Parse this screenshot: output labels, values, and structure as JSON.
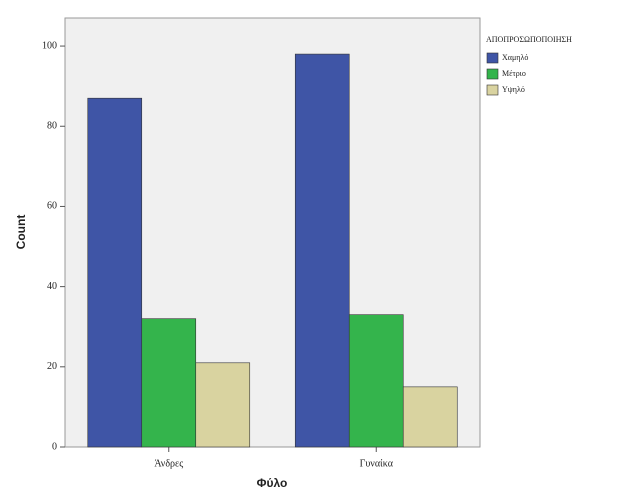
{
  "chart_data": {
    "type": "bar",
    "x_label": "Φύλο",
    "y_label": "Count",
    "categories": [
      "Άνδρες",
      "Γυναίκα"
    ],
    "legend_title": "ΑΠΟΠΡΟΣΩΠΟΠΟΙΗΣΗ",
    "series": [
      {
        "name": "Χαμηλό",
        "color": "#3f55a6",
        "values": [
          87,
          98
        ]
      },
      {
        "name": "Μέτριο",
        "color": "#34b44c",
        "values": [
          32,
          33
        ]
      },
      {
        "name": "Υψηλό",
        "color": "#d9d3a0",
        "values": [
          21,
          15
        ]
      }
    ],
    "ylim": [
      0,
      107
    ],
    "yticks": [
      0,
      20,
      40,
      60,
      80,
      100
    ],
    "grid": false
  }
}
